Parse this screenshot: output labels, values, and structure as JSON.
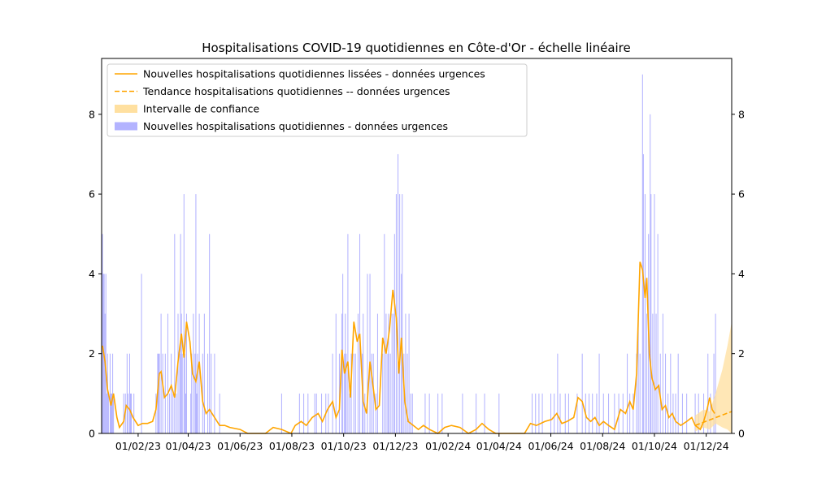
{
  "chart_data": {
    "type": "bar",
    "title": "Hospitalisations COVID-19 quotidiennes en Côte-d'Or - échelle linéaire",
    "xlabel": "",
    "ylabel": "",
    "x_range": [
      "2022-12-20",
      "2024-12-31"
    ],
    "ylim": [
      0,
      9.4
    ],
    "yticks": [
      0,
      2,
      4,
      6,
      8
    ],
    "xticks": [
      {
        "date": "2023-02-01",
        "label": "01/02/23"
      },
      {
        "date": "2023-04-01",
        "label": "01/04/23"
      },
      {
        "date": "2023-06-01",
        "label": "01/06/23"
      },
      {
        "date": "2023-08-01",
        "label": "01/08/23"
      },
      {
        "date": "2023-10-01",
        "label": "01/10/23"
      },
      {
        "date": "2023-12-01",
        "label": "01/12/23"
      },
      {
        "date": "2024-02-01",
        "label": "01/02/24"
      },
      {
        "date": "2024-04-01",
        "label": "01/04/24"
      },
      {
        "date": "2024-06-01",
        "label": "01/06/24"
      },
      {
        "date": "2024-08-01",
        "label": "01/08/24"
      },
      {
        "date": "2024-10-01",
        "label": "01/10/24"
      },
      {
        "date": "2024-12-01",
        "label": "01/12/24"
      }
    ],
    "grid": false,
    "legend_position": "top-left",
    "legend": [
      {
        "label": "Nouvelles hospitalisations quotidiennes lissées - données urgences",
        "kind": "line",
        "color": "#ffa500"
      },
      {
        "label": "Tendance hospitalisations quotidiennes -- données urgences",
        "kind": "dashed",
        "color": "#ffa500"
      },
      {
        "label": "Intervalle de confiance",
        "kind": "patch",
        "color": "#ffe0a0"
      },
      {
        "label": "Nouvelles hospitalisations quotidiennes - données urgences",
        "kind": "patch",
        "color": "#b3b3ff"
      }
    ],
    "colors": {
      "bars": "#b3b3ff",
      "line": "#ffa500",
      "band": "#ffdf9e"
    },
    "bars": [
      [
        "2022-12-21",
        5
      ],
      [
        "2022-12-22",
        4
      ],
      [
        "2022-12-23",
        4
      ],
      [
        "2022-12-24",
        3
      ],
      [
        "2022-12-25",
        4
      ],
      [
        "2022-12-26",
        1
      ],
      [
        "2022-12-27",
        2
      ],
      [
        "2022-12-28",
        1
      ],
      [
        "2022-12-30",
        2
      ],
      [
        "2022-12-31",
        1
      ],
      [
        "2023-01-01",
        1
      ],
      [
        "2023-01-02",
        2
      ],
      [
        "2023-01-03",
        1
      ],
      [
        "2023-01-15",
        1
      ],
      [
        "2023-01-17",
        1
      ],
      [
        "2023-01-19",
        2
      ],
      [
        "2023-01-20",
        1
      ],
      [
        "2023-01-22",
        2
      ],
      [
        "2023-01-23",
        1
      ],
      [
        "2023-01-24",
        1
      ],
      [
        "2023-01-27",
        1
      ],
      [
        "2023-02-05",
        4
      ],
      [
        "2023-02-22",
        1
      ],
      [
        "2023-02-24",
        2
      ],
      [
        "2023-02-25",
        2
      ],
      [
        "2023-02-26",
        2
      ],
      [
        "2023-02-28",
        3
      ],
      [
        "2023-03-02",
        2
      ],
      [
        "2023-03-05",
        2
      ],
      [
        "2023-03-08",
        3
      ],
      [
        "2023-03-10",
        1
      ],
      [
        "2023-03-12",
        2
      ],
      [
        "2023-03-14",
        1
      ],
      [
        "2023-03-16",
        5
      ],
      [
        "2023-03-18",
        1
      ],
      [
        "2023-03-20",
        3
      ],
      [
        "2023-03-22",
        2
      ],
      [
        "2023-03-23",
        5
      ],
      [
        "2023-03-24",
        3
      ],
      [
        "2023-03-25",
        2
      ],
      [
        "2023-03-27",
        6
      ],
      [
        "2023-03-28",
        2
      ],
      [
        "2023-03-29",
        1
      ],
      [
        "2023-03-30",
        3
      ],
      [
        "2023-04-04",
        1
      ],
      [
        "2023-04-05",
        2
      ],
      [
        "2023-04-07",
        3
      ],
      [
        "2023-04-09",
        2
      ],
      [
        "2023-04-10",
        6
      ],
      [
        "2023-04-11",
        1
      ],
      [
        "2023-04-12",
        2
      ],
      [
        "2023-04-14",
        3
      ],
      [
        "2023-04-18",
        2
      ],
      [
        "2023-04-20",
        3
      ],
      [
        "2023-04-24",
        2
      ],
      [
        "2023-04-26",
        5
      ],
      [
        "2023-04-28",
        2
      ],
      [
        "2023-05-02",
        2
      ],
      [
        "2023-05-08",
        1
      ],
      [
        "2023-07-20",
        1
      ],
      [
        "2023-08-10",
        1
      ],
      [
        "2023-08-15",
        1
      ],
      [
        "2023-08-20",
        1
      ],
      [
        "2023-08-28",
        1
      ],
      [
        "2023-08-30",
        1
      ],
      [
        "2023-09-05",
        1
      ],
      [
        "2023-09-10",
        1
      ],
      [
        "2023-09-13",
        1
      ],
      [
        "2023-09-18",
        2
      ],
      [
        "2023-09-22",
        3
      ],
      [
        "2023-09-26",
        2
      ],
      [
        "2023-10-03",
        3
      ],
      [
        "2023-09-29",
        3
      ],
      [
        "2023-09-30",
        4
      ],
      [
        "2023-10-02",
        2
      ],
      [
        "2023-10-04",
        2
      ],
      [
        "2023-10-06",
        5
      ],
      [
        "2023-10-08",
        1
      ],
      [
        "2023-10-10",
        2
      ],
      [
        "2023-10-13",
        2
      ],
      [
        "2023-10-15",
        2
      ],
      [
        "2023-10-18",
        3
      ],
      [
        "2023-10-20",
        5
      ],
      [
        "2023-10-23",
        2
      ],
      [
        "2023-10-24",
        3
      ],
      [
        "2023-10-26",
        1
      ],
      [
        "2023-10-29",
        4
      ],
      [
        "2023-11-01",
        4
      ],
      [
        "2023-11-03",
        2
      ],
      [
        "2023-11-05",
        2
      ],
      [
        "2023-11-08",
        1
      ],
      [
        "2023-11-10",
        3
      ],
      [
        "2023-11-16",
        2
      ],
      [
        "2023-11-18",
        5
      ],
      [
        "2023-11-20",
        3
      ],
      [
        "2023-11-22",
        2
      ],
      [
        "2023-11-23",
        3
      ],
      [
        "2023-11-25",
        2
      ],
      [
        "2023-11-27",
        3
      ],
      [
        "2023-11-29",
        3
      ],
      [
        "2023-11-30",
        5
      ],
      [
        "2023-12-02",
        6
      ],
      [
        "2023-12-04",
        7
      ],
      [
        "2023-12-06",
        6
      ],
      [
        "2023-12-08",
        4
      ],
      [
        "2023-12-09",
        6
      ],
      [
        "2023-12-11",
        2
      ],
      [
        "2023-12-13",
        3
      ],
      [
        "2023-12-15",
        2
      ],
      [
        "2023-12-17",
        3
      ],
      [
        "2023-12-19",
        1
      ],
      [
        "2023-12-21",
        1
      ],
      [
        "2024-01-05",
        1
      ],
      [
        "2024-01-10",
        1
      ],
      [
        "2024-01-20",
        1
      ],
      [
        "2024-01-25",
        1
      ],
      [
        "2024-02-18",
        1
      ],
      [
        "2024-03-05",
        1
      ],
      [
        "2024-03-15",
        1
      ],
      [
        "2024-04-01",
        1
      ],
      [
        "2024-05-10",
        1
      ],
      [
        "2024-05-14",
        1
      ],
      [
        "2024-05-18",
        1
      ],
      [
        "2024-05-22",
        1
      ],
      [
        "2024-06-01",
        1
      ],
      [
        "2024-06-05",
        1
      ],
      [
        "2024-06-09",
        2
      ],
      [
        "2024-06-12",
        1
      ],
      [
        "2024-06-18",
        1
      ],
      [
        "2024-06-22",
        1
      ],
      [
        "2024-07-02",
        1
      ],
      [
        "2024-07-08",
        2
      ],
      [
        "2024-07-12",
        1
      ],
      [
        "2024-07-16",
        1
      ],
      [
        "2024-07-20",
        1
      ],
      [
        "2024-07-25",
        1
      ],
      [
        "2024-07-28",
        2
      ],
      [
        "2024-08-02",
        1
      ],
      [
        "2024-08-08",
        1
      ],
      [
        "2024-08-15",
        1
      ],
      [
        "2024-08-20",
        1
      ],
      [
        "2024-08-25",
        1
      ],
      [
        "2024-08-30",
        2
      ],
      [
        "2024-09-02",
        1
      ],
      [
        "2024-09-06",
        1
      ],
      [
        "2024-09-10",
        2
      ],
      [
        "2024-09-12",
        3
      ],
      [
        "2024-09-14",
        2
      ],
      [
        "2024-09-17",
        9
      ],
      [
        "2024-09-18",
        7
      ],
      [
        "2024-09-20",
        6
      ],
      [
        "2024-09-22",
        3
      ],
      [
        "2024-09-24",
        5
      ],
      [
        "2024-09-26",
        8
      ],
      [
        "2024-09-27",
        6
      ],
      [
        "2024-09-29",
        3
      ],
      [
        "2024-10-01",
        6
      ],
      [
        "2024-10-03",
        3
      ],
      [
        "2024-10-05",
        5
      ],
      [
        "2024-10-08",
        2
      ],
      [
        "2024-10-11",
        3
      ],
      [
        "2024-10-14",
        2
      ],
      [
        "2024-10-17",
        1
      ],
      [
        "2024-10-20",
        2
      ],
      [
        "2024-10-23",
        1
      ],
      [
        "2024-10-26",
        1
      ],
      [
        "2024-10-29",
        2
      ],
      [
        "2024-11-03",
        1
      ],
      [
        "2024-11-08",
        1
      ],
      [
        "2024-11-18",
        1
      ],
      [
        "2024-11-22",
        1
      ],
      [
        "2024-11-28",
        1
      ],
      [
        "2024-12-03",
        2
      ],
      [
        "2024-12-06",
        1
      ],
      [
        "2024-12-10",
        2
      ],
      [
        "2024-12-12",
        3
      ]
    ],
    "smoothed": [
      [
        "2022-12-21",
        2.2
      ],
      [
        "2022-12-24",
        1.8
      ],
      [
        "2022-12-27",
        1.1
      ],
      [
        "2022-12-31",
        0.7
      ],
      [
        "2023-01-03",
        1.0
      ],
      [
        "2023-01-07",
        0.4
      ],
      [
        "2023-01-10",
        0.15
      ],
      [
        "2023-01-15",
        0.3
      ],
      [
        "2023-01-18",
        0.7
      ],
      [
        "2023-01-22",
        0.6
      ],
      [
        "2023-01-26",
        0.4
      ],
      [
        "2023-02-01",
        0.2
      ],
      [
        "2023-02-06",
        0.25
      ],
      [
        "2023-02-12",
        0.25
      ],
      [
        "2023-02-18",
        0.3
      ],
      [
        "2023-02-22",
        0.6
      ],
      [
        "2023-02-26",
        1.5
      ],
      [
        "2023-02-28",
        1.55
      ],
      [
        "2023-03-04",
        0.9
      ],
      [
        "2023-03-08",
        1.0
      ],
      [
        "2023-03-12",
        1.2
      ],
      [
        "2023-03-16",
        0.9
      ],
      [
        "2023-03-20",
        1.8
      ],
      [
        "2023-03-24",
        2.5
      ],
      [
        "2023-03-27",
        1.9
      ],
      [
        "2023-03-30",
        2.8
      ],
      [
        "2023-04-03",
        2.3
      ],
      [
        "2023-04-06",
        1.5
      ],
      [
        "2023-04-10",
        1.3
      ],
      [
        "2023-04-14",
        1.8
      ],
      [
        "2023-04-18",
        0.8
      ],
      [
        "2023-04-22",
        0.5
      ],
      [
        "2023-04-26",
        0.6
      ],
      [
        "2023-05-02",
        0.4
      ],
      [
        "2023-05-08",
        0.2
      ],
      [
        "2023-05-14",
        0.2
      ],
      [
        "2023-05-20",
        0.15
      ],
      [
        "2023-06-01",
        0.1
      ],
      [
        "2023-06-10",
        0.0
      ],
      [
        "2023-06-20",
        0.0
      ],
      [
        "2023-07-01",
        0.0
      ],
      [
        "2023-07-10",
        0.15
      ],
      [
        "2023-07-20",
        0.1
      ],
      [
        "2023-07-31",
        0.0
      ],
      [
        "2023-08-05",
        0.2
      ],
      [
        "2023-08-12",
        0.3
      ],
      [
        "2023-08-18",
        0.2
      ],
      [
        "2023-08-25",
        0.4
      ],
      [
        "2023-09-01",
        0.5
      ],
      [
        "2023-09-06",
        0.3
      ],
      [
        "2023-09-12",
        0.6
      ],
      [
        "2023-09-18",
        0.8
      ],
      [
        "2023-09-22",
        0.4
      ],
      [
        "2023-09-26",
        0.6
      ],
      [
        "2023-09-29",
        2.1
      ],
      [
        "2023-10-02",
        1.5
      ],
      [
        "2023-10-06",
        1.8
      ],
      [
        "2023-10-09",
        0.9
      ],
      [
        "2023-10-13",
        2.8
      ],
      [
        "2023-10-17",
        2.3
      ],
      [
        "2023-10-20",
        2.5
      ],
      [
        "2023-10-24",
        0.8
      ],
      [
        "2023-10-28",
        0.5
      ],
      [
        "2023-11-01",
        1.8
      ],
      [
        "2023-11-04",
        1.3
      ],
      [
        "2023-11-08",
        0.6
      ],
      [
        "2023-11-12",
        0.7
      ],
      [
        "2023-11-16",
        2.4
      ],
      [
        "2023-11-20",
        2.0
      ],
      [
        "2023-11-24",
        2.6
      ],
      [
        "2023-11-28",
        3.6
      ],
      [
        "2023-12-02",
        2.9
      ],
      [
        "2023-12-05",
        1.5
      ],
      [
        "2023-12-08",
        2.4
      ],
      [
        "2023-12-12",
        0.8
      ],
      [
        "2023-12-16",
        0.3
      ],
      [
        "2023-12-22",
        0.2
      ],
      [
        "2023-12-28",
        0.1
      ],
      [
        "2024-01-03",
        0.2
      ],
      [
        "2024-01-10",
        0.1
      ],
      [
        "2024-01-20",
        0.0
      ],
      [
        "2024-01-28",
        0.15
      ],
      [
        "2024-02-05",
        0.2
      ],
      [
        "2024-02-15",
        0.15
      ],
      [
        "2024-02-25",
        0.0
      ],
      [
        "2024-03-05",
        0.1
      ],
      [
        "2024-03-12",
        0.25
      ],
      [
        "2024-03-20",
        0.1
      ],
      [
        "2024-03-28",
        0.0
      ],
      [
        "2024-04-10",
        0.0
      ],
      [
        "2024-04-20",
        0.0
      ],
      [
        "2024-05-01",
        0.0
      ],
      [
        "2024-05-08",
        0.25
      ],
      [
        "2024-05-15",
        0.2
      ],
      [
        "2024-05-25",
        0.3
      ],
      [
        "2024-06-02",
        0.35
      ],
      [
        "2024-06-08",
        0.5
      ],
      [
        "2024-06-14",
        0.25
      ],
      [
        "2024-06-20",
        0.3
      ],
      [
        "2024-06-28",
        0.4
      ],
      [
        "2024-07-03",
        0.9
      ],
      [
        "2024-07-08",
        0.8
      ],
      [
        "2024-07-13",
        0.4
      ],
      [
        "2024-07-18",
        0.3
      ],
      [
        "2024-07-23",
        0.4
      ],
      [
        "2024-07-28",
        0.2
      ],
      [
        "2024-08-02",
        0.3
      ],
      [
        "2024-08-08",
        0.2
      ],
      [
        "2024-08-15",
        0.1
      ],
      [
        "2024-08-22",
        0.6
      ],
      [
        "2024-08-28",
        0.5
      ],
      [
        "2024-09-02",
        0.8
      ],
      [
        "2024-09-06",
        0.6
      ],
      [
        "2024-09-10",
        1.5
      ],
      [
        "2024-09-14",
        4.3
      ],
      [
        "2024-09-17",
        4.1
      ],
      [
        "2024-09-20",
        3.4
      ],
      [
        "2024-09-22",
        3.9
      ],
      [
        "2024-09-25",
        2.0
      ],
      [
        "2024-09-28",
        1.4
      ],
      [
        "2024-10-02",
        1.1
      ],
      [
        "2024-10-06",
        1.2
      ],
      [
        "2024-10-10",
        0.6
      ],
      [
        "2024-10-14",
        0.7
      ],
      [
        "2024-10-18",
        0.4
      ],
      [
        "2024-10-22",
        0.5
      ],
      [
        "2024-10-26",
        0.3
      ],
      [
        "2024-11-01",
        0.2
      ],
      [
        "2024-11-08",
        0.3
      ],
      [
        "2024-11-14",
        0.4
      ],
      [
        "2024-11-18",
        0.2
      ],
      [
        "2024-11-24",
        0.1
      ],
      [
        "2024-11-28",
        0.3
      ],
      [
        "2024-12-02",
        0.6
      ],
      [
        "2024-12-05",
        0.9
      ],
      [
        "2024-12-08",
        0.6
      ],
      [
        "2024-12-11",
        0.5
      ]
    ],
    "trend": [
      [
        "2024-11-18",
        0.2
      ],
      [
        "2024-12-31",
        0.55
      ]
    ],
    "confidence_band": [
      [
        "2024-11-18",
        0.45,
        0.05
      ],
      [
        "2024-11-28",
        0.6,
        0.15
      ],
      [
        "2024-12-05",
        0.55,
        0.1
      ],
      [
        "2024-12-12",
        1.0,
        0.25
      ],
      [
        "2024-12-20",
        1.6,
        0.15
      ],
      [
        "2024-12-26",
        2.2,
        0.1
      ],
      [
        "2024-12-31",
        2.8,
        0.0
      ]
    ]
  }
}
